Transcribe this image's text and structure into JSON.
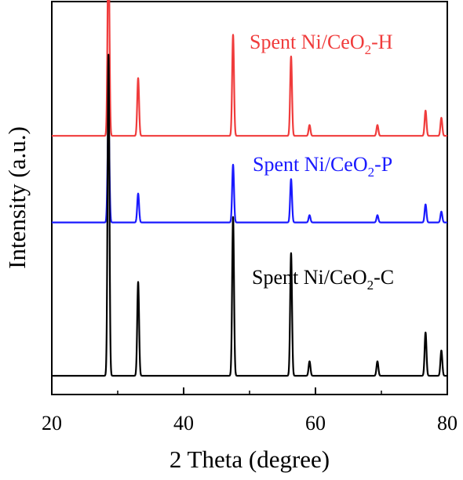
{
  "chart_data": {
    "type": "line",
    "xlabel": "2 Theta (degree)",
    "ylabel": "Intensity (a.u.)",
    "xlim": [
      20,
      80
    ],
    "x_ticks": [
      20,
      40,
      60,
      80
    ],
    "y_ticks": "none",
    "grid": false,
    "legend": "none (series labels placed above each trace)",
    "series": [
      {
        "name": "Spent Ni/CeO2-H",
        "label_main": "Spent Ni/CeO",
        "label_sub": "2",
        "label_suffix": "-H",
        "color": "#f03c3c",
        "baseline": 0.68,
        "peaks": [
          {
            "x": 28.6,
            "h": 0.56
          },
          {
            "x": 33.1,
            "h": 0.16
          },
          {
            "x": 47.5,
            "h": 0.28
          },
          {
            "x": 56.3,
            "h": 0.22
          },
          {
            "x": 59.1,
            "h": 0.03
          },
          {
            "x": 69.4,
            "h": 0.03
          },
          {
            "x": 76.7,
            "h": 0.07
          },
          {
            "x": 79.1,
            "h": 0.05
          }
        ]
      },
      {
        "name": "Spent Ni/CeO2-P",
        "label_main": "Spent Ni/CeO",
        "label_sub": "2",
        "label_suffix": "-P",
        "color": "#1a1aff",
        "baseline": 0.44,
        "peaks": [
          {
            "x": 28.6,
            "h": 0.29
          },
          {
            "x": 33.1,
            "h": 0.08
          },
          {
            "x": 47.5,
            "h": 0.16
          },
          {
            "x": 56.3,
            "h": 0.12
          },
          {
            "x": 59.1,
            "h": 0.02
          },
          {
            "x": 69.4,
            "h": 0.02
          },
          {
            "x": 76.7,
            "h": 0.05
          },
          {
            "x": 79.1,
            "h": 0.03
          }
        ]
      },
      {
        "name": "Spent Ni/CeO2-C",
        "label_main": "Spent Ni/CeO",
        "label_sub": "2",
        "label_suffix": "-C",
        "color": "#000000",
        "baseline": 0.015,
        "peaks": [
          {
            "x": 28.6,
            "h": 0.89
          },
          {
            "x": 33.1,
            "h": 0.26
          },
          {
            "x": 47.5,
            "h": 0.44
          },
          {
            "x": 56.3,
            "h": 0.34
          },
          {
            "x": 59.1,
            "h": 0.04
          },
          {
            "x": 69.4,
            "h": 0.04
          },
          {
            "x": 76.7,
            "h": 0.12
          },
          {
            "x": 79.1,
            "h": 0.07
          }
        ]
      }
    ]
  }
}
